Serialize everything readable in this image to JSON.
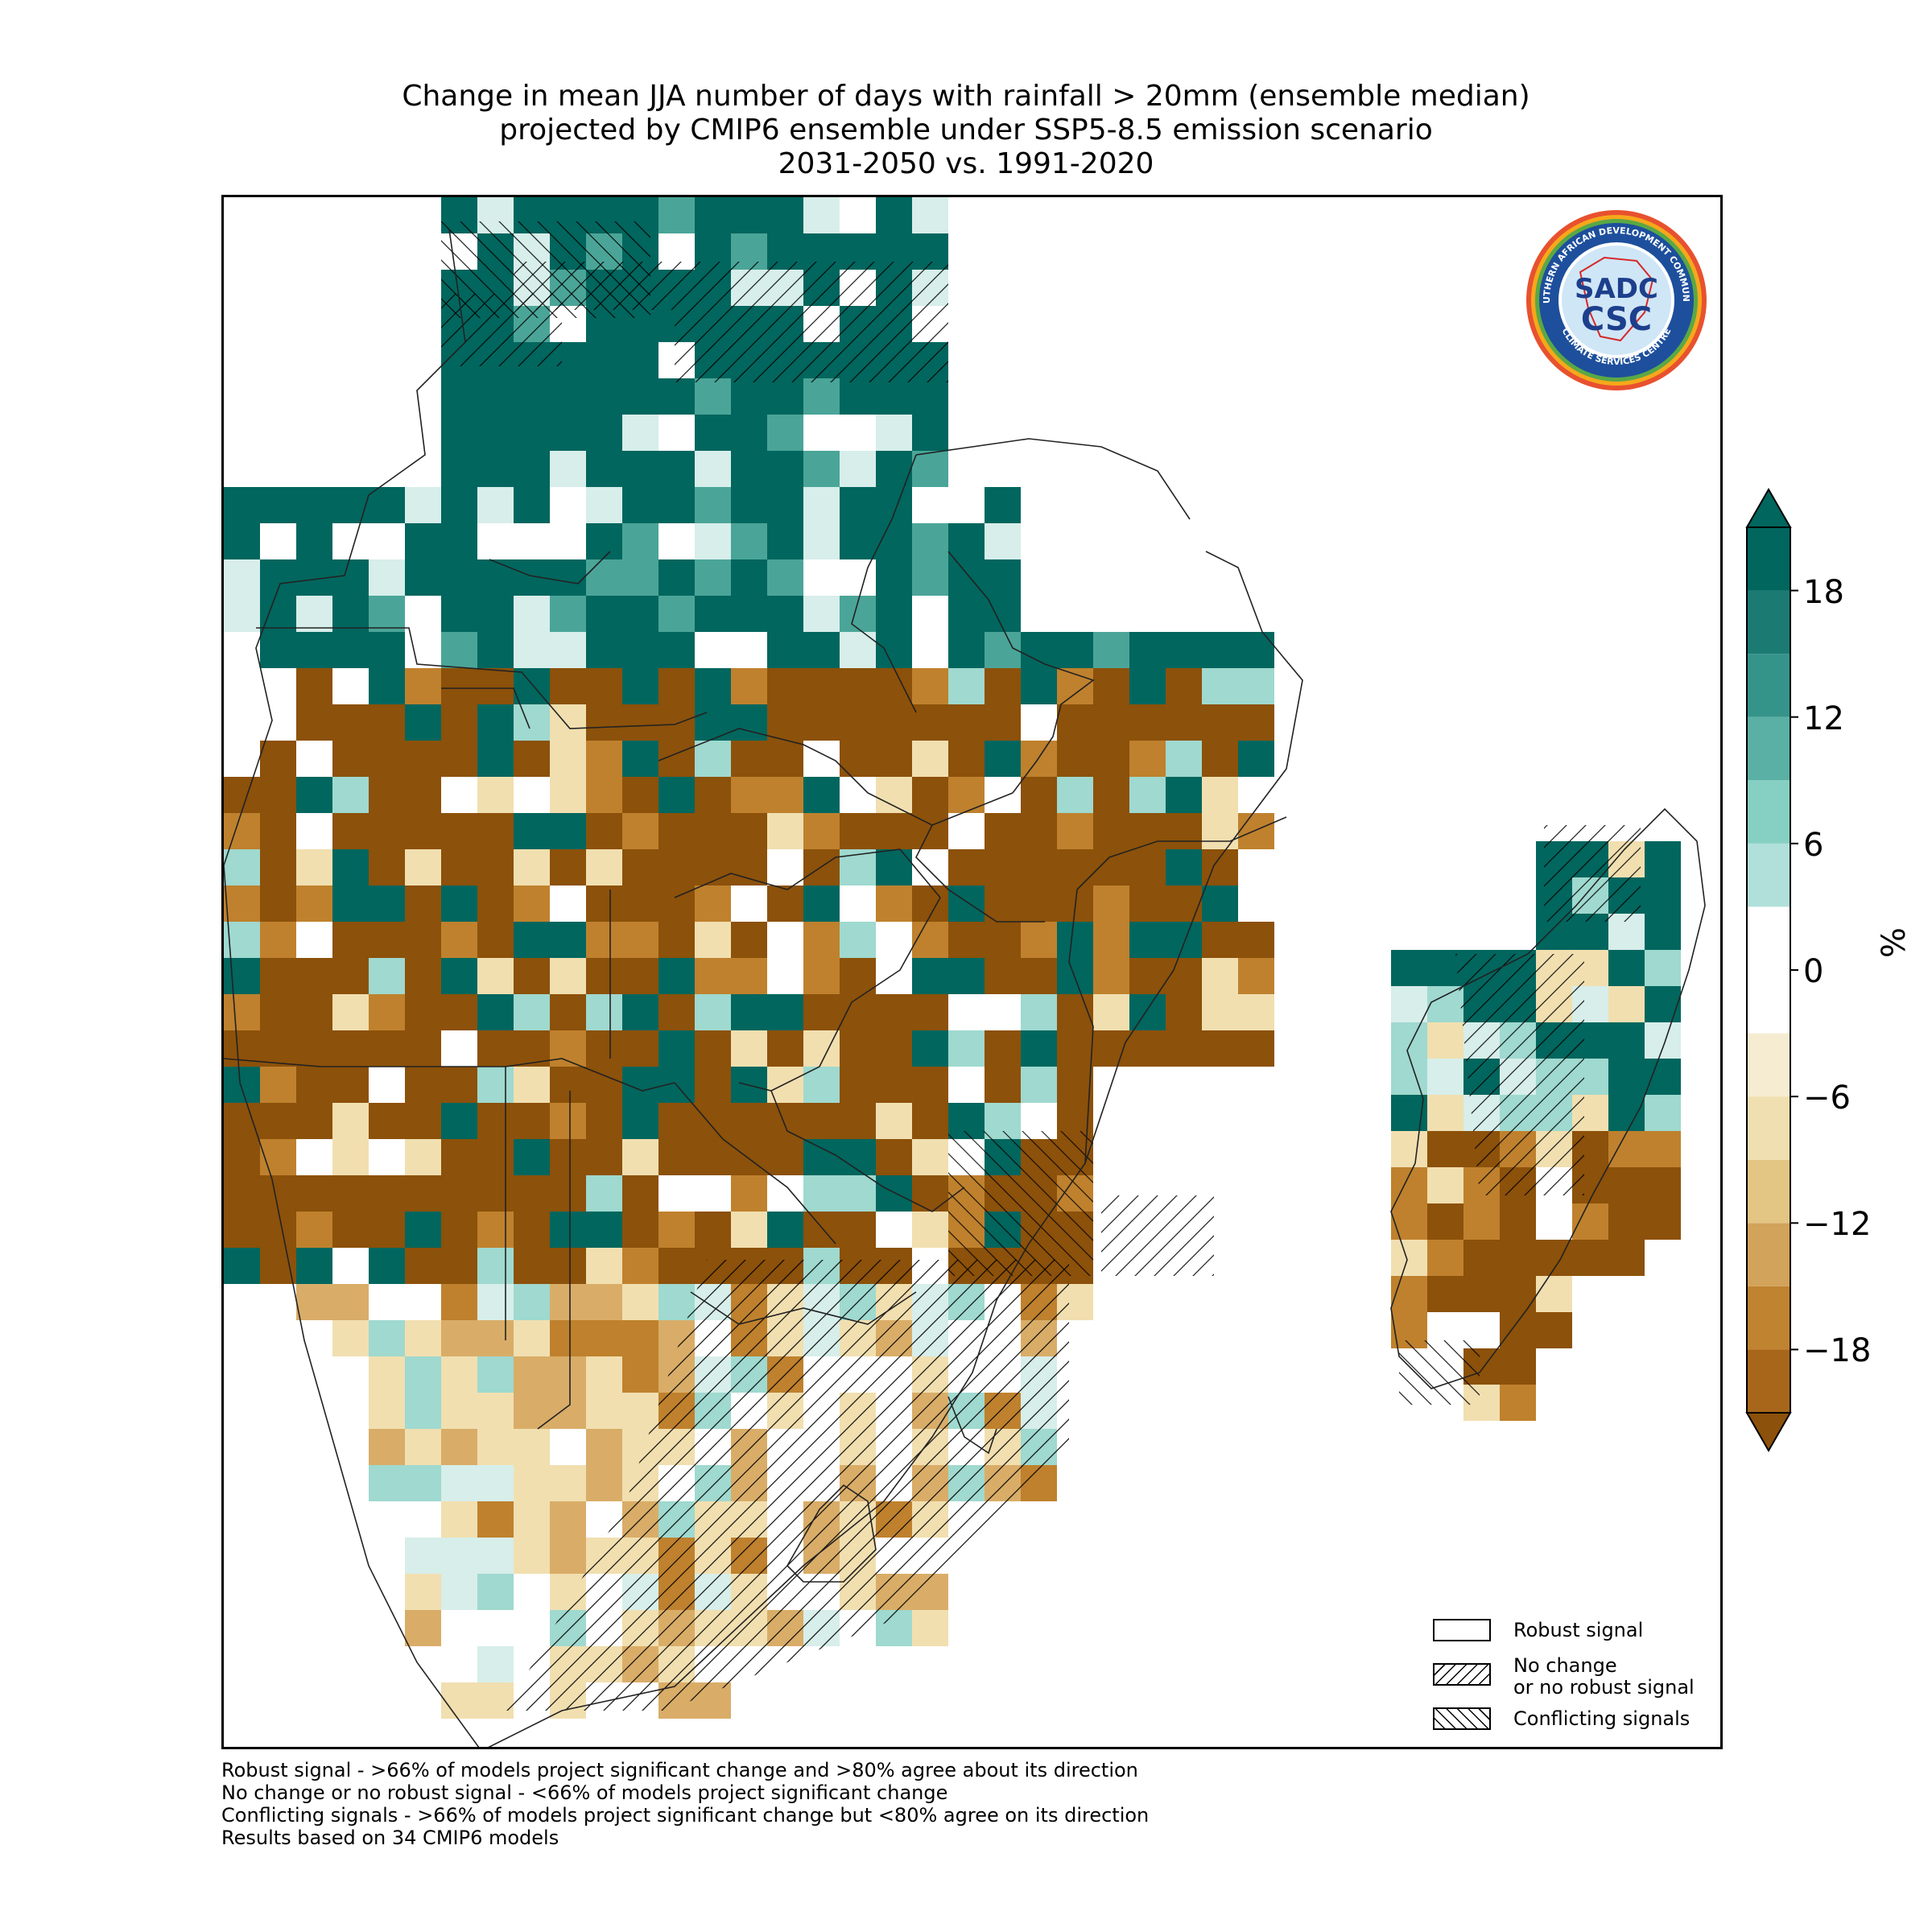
{
  "title": {
    "line1": "Change in mean JJA number of days with rainfall > 20mm (ensemble median)",
    "line2": "projected by CMIP6 ensemble under SSP5-8.5 emission scenario",
    "line3": "2031-2050 vs. 1991-2020"
  },
  "colorbar": {
    "unit": "%",
    "tick_labels": [
      "18",
      "12",
      "6",
      "0",
      "−6",
      "−12",
      "−18"
    ],
    "tick_values": [
      18,
      12,
      6,
      0,
      -6,
      -12,
      -18
    ],
    "range": [
      -21,
      21
    ],
    "extend": "both",
    "bin_edges": [
      -21,
      -18,
      -15,
      -12,
      -9,
      -6,
      -3,
      3,
      6,
      9,
      12,
      15,
      18,
      21
    ],
    "colors": [
      "#8c510a",
      "#a8661b",
      "#c08330",
      "#d2a35a",
      "#e3c584",
      "#f0dfb0",
      "#f6ecd2",
      "#ffffff",
      "#d7eeea",
      "#b1e0da",
      "#86d0c3",
      "#5ab0a4",
      "#35948a",
      "#1b7b73",
      "#01665e"
    ]
  },
  "legend": {
    "items": [
      {
        "label": "Robust signal",
        "pattern": "none"
      },
      {
        "label": "No change\nor no robust signal",
        "pattern": "forward-hatch"
      },
      {
        "label": "Conflicting signals",
        "pattern": "back-hatch"
      }
    ]
  },
  "footnotes": [
    "Robust signal - >66% of models project significant change and >80% agree about its direction",
    "No change or no robust signal - <66% of models project significant change",
    "Conflicting signals - >66% of models project significant change but <80% agree on its direction",
    "Results based on 34 CMIP6 models"
  ],
  "logo": {
    "top_text": "SOUTHERN AFRICAN DEVELOPMENT COMMUNITY",
    "bottom_text": "CLIMATE SERVICES CENTRE",
    "mark_top": "SADC",
    "mark_bottom": "CSC"
  }
}
